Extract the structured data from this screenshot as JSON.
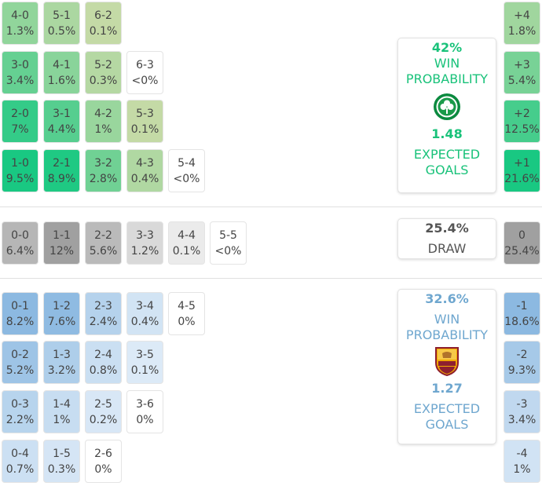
{
  "colors": {
    "home_accent": "#19c27a",
    "away_accent": "#6fa7cf",
    "draw_accent": "#555555"
  },
  "chart_data": {
    "type": "table",
    "title": "",
    "home_win": {
      "scorelines": [
        [
          {
            "score": "4-0",
            "prob": "1.3%",
            "value": 1.3
          },
          {
            "score": "5-1",
            "prob": "0.5%",
            "value": 0.5
          },
          {
            "score": "6-2",
            "prob": "0.1%",
            "value": 0.1
          }
        ],
        [
          {
            "score": "3-0",
            "prob": "3.4%",
            "value": 3.4
          },
          {
            "score": "4-1",
            "prob": "1.6%",
            "value": 1.6
          },
          {
            "score": "5-2",
            "prob": "0.3%",
            "value": 0.3
          },
          {
            "score": "6-3",
            "prob": "<0%",
            "value": 0
          }
        ],
        [
          {
            "score": "2-0",
            "prob": "7%",
            "value": 7
          },
          {
            "score": "3-1",
            "prob": "4.4%",
            "value": 4.4
          },
          {
            "score": "4-2",
            "prob": "1%",
            "value": 1
          },
          {
            "score": "5-3",
            "prob": "0.1%",
            "value": 0.1
          }
        ],
        [
          {
            "score": "1-0",
            "prob": "9.5%",
            "value": 9.5
          },
          {
            "score": "2-1",
            "prob": "8.9%",
            "value": 8.9
          },
          {
            "score": "3-2",
            "prob": "2.8%",
            "value": 2.8
          },
          {
            "score": "4-3",
            "prob": "0.4%",
            "value": 0.4
          },
          {
            "score": "5-4",
            "prob": "<0%",
            "value": 0
          }
        ]
      ],
      "margins": [
        {
          "label": "+4",
          "prob": "1.8%",
          "value": 1.8
        },
        {
          "label": "+3",
          "prob": "5.4%",
          "value": 5.4
        },
        {
          "label": "+2",
          "prob": "12.5%",
          "value": 12.5
        },
        {
          "label": "+1",
          "prob": "21.6%",
          "value": 21.6
        }
      ],
      "summary": {
        "win_pct": "42%",
        "win_label_1": "WIN",
        "win_label_2": "PROBABILITY",
        "xg": "1.48",
        "xg_label_1": "EXPECTED",
        "xg_label_2": "GOALS",
        "crest": "celtic-crest-icon"
      }
    },
    "draw": {
      "scorelines": [
        [
          {
            "score": "0-0",
            "prob": "6.4%",
            "value": 6.4
          },
          {
            "score": "1-1",
            "prob": "12%",
            "value": 12
          },
          {
            "score": "2-2",
            "prob": "5.6%",
            "value": 5.6
          },
          {
            "score": "3-3",
            "prob": "1.2%",
            "value": 1.2
          },
          {
            "score": "4-4",
            "prob": "0.1%",
            "value": 0.1
          },
          {
            "score": "5-5",
            "prob": "<0%",
            "value": 0
          }
        ]
      ],
      "margins": [
        {
          "label": "0",
          "prob": "25.4%",
          "value": 25.4
        }
      ],
      "summary": {
        "pct": "25.4%",
        "label": "DRAW"
      }
    },
    "away_win": {
      "scorelines": [
        [
          {
            "score": "0-1",
            "prob": "8.2%",
            "value": 8.2
          },
          {
            "score": "1-2",
            "prob": "7.6%",
            "value": 7.6
          },
          {
            "score": "2-3",
            "prob": "2.4%",
            "value": 2.4
          },
          {
            "score": "3-4",
            "prob": "0.4%",
            "value": 0.4
          },
          {
            "score": "4-5",
            "prob": "0%",
            "value": 0
          }
        ],
        [
          {
            "score": "0-2",
            "prob": "5.2%",
            "value": 5.2
          },
          {
            "score": "1-3",
            "prob": "3.2%",
            "value": 3.2
          },
          {
            "score": "2-4",
            "prob": "0.8%",
            "value": 0.8
          },
          {
            "score": "3-5",
            "prob": "0.1%",
            "value": 0.1
          }
        ],
        [
          {
            "score": "0-3",
            "prob": "2.2%",
            "value": 2.2
          },
          {
            "score": "1-4",
            "prob": "1%",
            "value": 1
          },
          {
            "score": "2-5",
            "prob": "0.2%",
            "value": 0.2
          },
          {
            "score": "3-6",
            "prob": "0%",
            "value": 0
          }
        ],
        [
          {
            "score": "0-4",
            "prob": "0.7%",
            "value": 0.7
          },
          {
            "score": "1-5",
            "prob": "0.3%",
            "value": 0.3
          },
          {
            "score": "2-6",
            "prob": "0%",
            "value": 0
          }
        ]
      ],
      "margins": [
        {
          "label": "-1",
          "prob": "18.6%",
          "value": 18.6
        },
        {
          "label": "-2",
          "prob": "9.3%",
          "value": 9.3
        },
        {
          "label": "-3",
          "prob": "3.4%",
          "value": 3.4
        },
        {
          "label": "-4",
          "prob": "1%",
          "value": 1
        }
      ],
      "summary": {
        "win_pct": "32.6%",
        "win_label_1": "WIN",
        "win_label_2": "PROBABILITY",
        "xg": "1.27",
        "xg_label_1": "EXPECTED",
        "xg_label_2": "GOALS",
        "crest": "roma-crest-icon"
      }
    }
  }
}
